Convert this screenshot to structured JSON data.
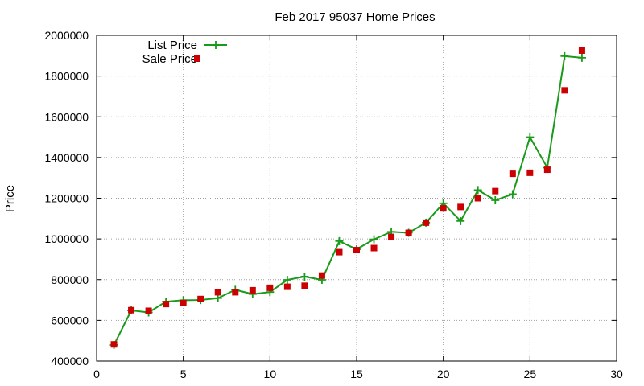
{
  "chart_data": {
    "type": "line",
    "title": "Feb 2017 95037 Home Prices",
    "xlabel": "",
    "ylabel": "Price",
    "xlim": [
      0,
      30
    ],
    "ylim": [
      400000,
      2000000
    ],
    "xticks": [
      0,
      5,
      10,
      15,
      20,
      25,
      30
    ],
    "yticks": [
      400000,
      600000,
      800000,
      1000000,
      1200000,
      1400000,
      1600000,
      1800000,
      2000000
    ],
    "grid": true,
    "legend_position": "top-left",
    "series": [
      {
        "name": "List Price",
        "style": "line-with-plus-markers",
        "color": "#1a9a1a",
        "x": [
          1,
          2,
          3,
          4,
          5,
          6,
          7,
          8,
          9,
          10,
          11,
          12,
          13,
          14,
          15,
          16,
          17,
          18,
          19,
          20,
          21,
          22,
          23,
          24,
          25,
          26,
          27,
          28
        ],
        "y": [
          479000,
          649000,
          639000,
          692000,
          699000,
          700000,
          709000,
          750000,
          729000,
          739000,
          799000,
          815000,
          799000,
          989000,
          949000,
          998000,
          1035000,
          1030000,
          1080000,
          1175000,
          1088000,
          1240000,
          1190000,
          1220000,
          1500000,
          1350000,
          1898000,
          1890000
        ]
      },
      {
        "name": "Sale Price",
        "style": "square-points",
        "color": "#cc0000",
        "x": [
          1,
          2,
          3,
          4,
          5,
          6,
          7,
          8,
          9,
          10,
          11,
          12,
          13,
          14,
          15,
          16,
          17,
          18,
          19,
          20,
          21,
          22,
          23,
          24,
          25,
          26,
          27,
          28
        ],
        "y": [
          482000,
          650000,
          647000,
          680000,
          685000,
          705000,
          738000,
          738000,
          748000,
          760000,
          765000,
          770000,
          820000,
          935000,
          945000,
          955000,
          1010000,
          1030000,
          1080000,
          1150000,
          1157000,
          1200000,
          1235000,
          1320000,
          1325000,
          1340000,
          1730000,
          1925000
        ]
      }
    ]
  }
}
